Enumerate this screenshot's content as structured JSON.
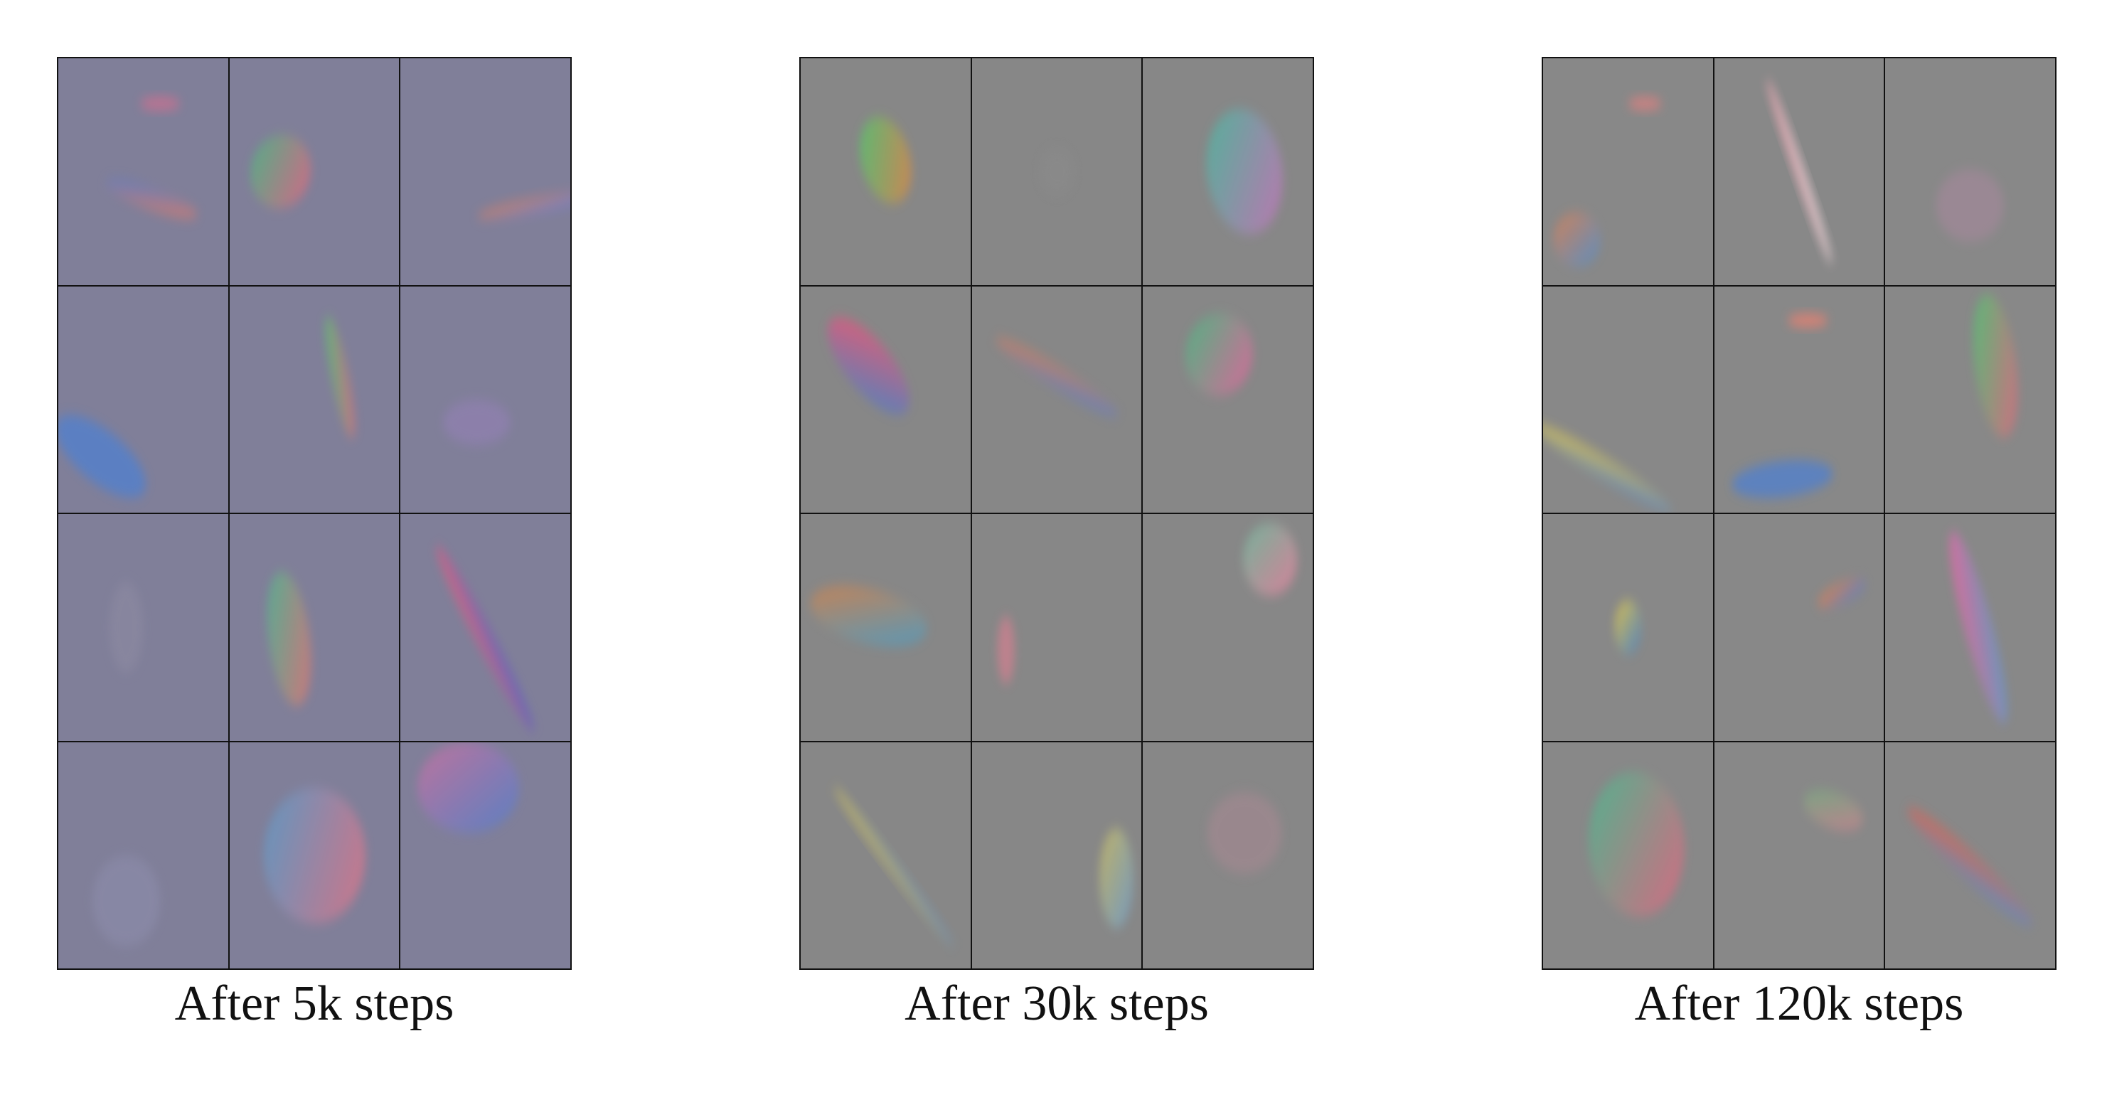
{
  "figure": {
    "panels": [
      {
        "caption": "After 5k steps",
        "background_color": "#807f99",
        "rows": 4,
        "cols": 3
      },
      {
        "caption": "After 30k steps",
        "background_color": "#878787",
        "rows": 4,
        "cols": 3
      },
      {
        "caption": "After 120k steps",
        "background_color": "#888888",
        "rows": 4,
        "cols": 3
      }
    ]
  }
}
